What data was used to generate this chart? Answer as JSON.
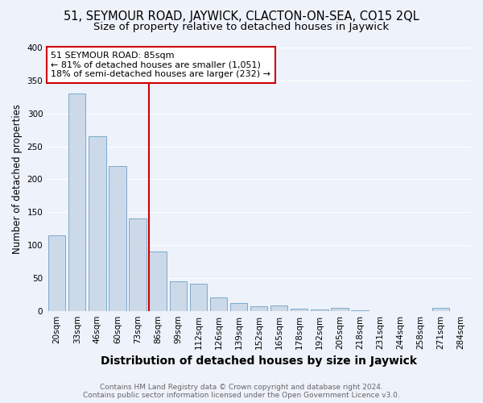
{
  "title": "51, SEYMOUR ROAD, JAYWICK, CLACTON-ON-SEA, CO15 2QL",
  "subtitle": "Size of property relative to detached houses in Jaywick",
  "xlabel": "Distribution of detached houses by size in Jaywick",
  "ylabel": "Number of detached properties",
  "categories": [
    "20sqm",
    "33sqm",
    "46sqm",
    "60sqm",
    "73sqm",
    "86sqm",
    "99sqm",
    "112sqm",
    "126sqm",
    "139sqm",
    "152sqm",
    "165sqm",
    "178sqm",
    "192sqm",
    "205sqm",
    "218sqm",
    "231sqm",
    "244sqm",
    "258sqm",
    "271sqm",
    "284sqm"
  ],
  "values": [
    115,
    330,
    265,
    220,
    140,
    90,
    45,
    41,
    21,
    12,
    7,
    8,
    3,
    2,
    4,
    1,
    0,
    0,
    0,
    5,
    0
  ],
  "bar_color": "#ccd9e8",
  "bar_edge_color": "#7aaacc",
  "vline_color": "#cc0000",
  "vline_x_index": 5,
  "annotation_lines": [
    "51 SEYMOUR ROAD: 85sqm",
    "← 81% of detached houses are smaller (1,051)",
    "18% of semi-detached houses are larger (232) →"
  ],
  "annotation_box_color": "#ffffff",
  "annotation_box_edge_color": "#cc0000",
  "ylim": [
    0,
    400
  ],
  "yticks": [
    0,
    50,
    100,
    150,
    200,
    250,
    300,
    350,
    400
  ],
  "background_color": "#eef2fa",
  "grid_color": "#ffffff",
  "footer_line1": "Contains HM Land Registry data © Crown copyright and database right 2024.",
  "footer_line2": "Contains public sector information licensed under the Open Government Licence v3.0.",
  "title_fontsize": 10.5,
  "subtitle_fontsize": 9.5,
  "xlabel_fontsize": 10,
  "ylabel_fontsize": 8.5,
  "tick_fontsize": 7.5,
  "annotation_fontsize": 8,
  "footer_fontsize": 6.5
}
